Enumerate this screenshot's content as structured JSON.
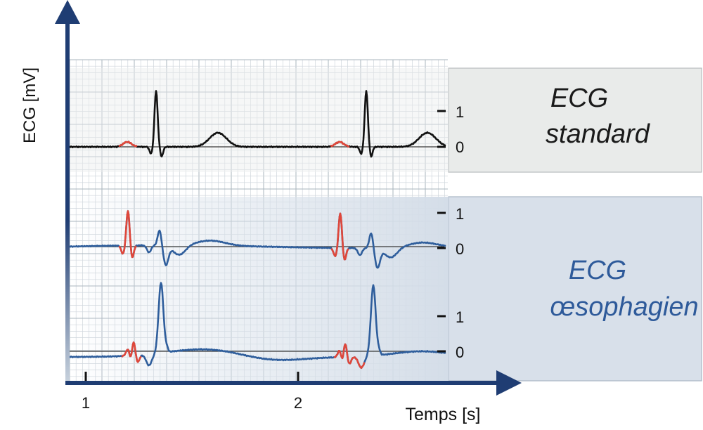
{
  "axis": {
    "y_label": "ECG [mV]",
    "x_label": "Temps [s]",
    "x_ticks": [
      "1",
      "2"
    ]
  },
  "panels": {
    "standard": {
      "title_line1": "ECG",
      "title_line2": "standard",
      "title_color": "#1a1a1a",
      "box_color": "#e9ebea"
    },
    "oesophageal": {
      "title_line1": "ECG",
      "title_line2": "œsophagien",
      "title_color": "#2e5a9a",
      "box_color": "#dbe3ec"
    }
  },
  "traces": {
    "standard": {
      "scale_labels": [
        "1",
        "0"
      ],
      "color": "#111111",
      "highlight_color": "#e0473a"
    },
    "oeso_1": {
      "scale_labels": [
        "1",
        "0"
      ],
      "color": "#2f5e9c",
      "highlight_color": "#e0473a"
    },
    "oeso_2": {
      "scale_labels": [
        "1",
        "0"
      ],
      "color": "#2f5e9c",
      "highlight_color": "#e0473a"
    }
  },
  "colors": {
    "axis": "#1f3d73",
    "grid": "#b9c4cc",
    "baseline": "#3a3a3a"
  }
}
